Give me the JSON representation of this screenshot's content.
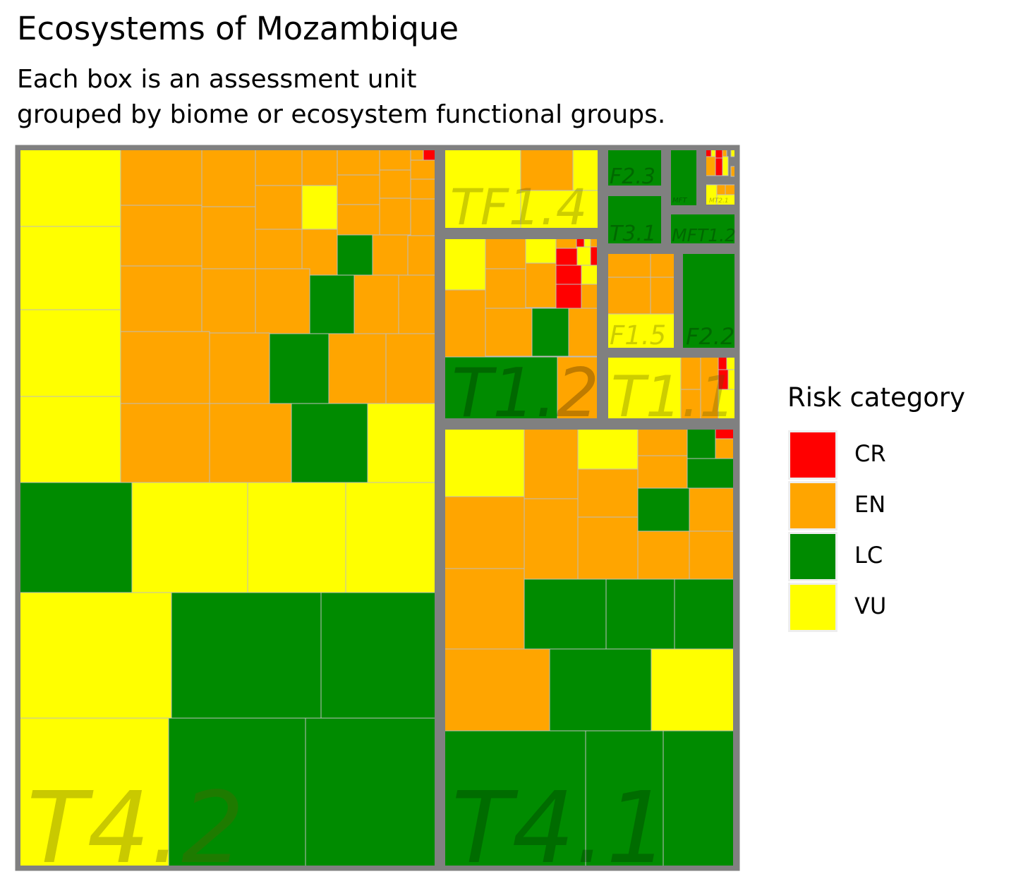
{
  "chart_data": {
    "type": "treemap",
    "title": "Ecosystems of Mozambique",
    "subtitle_lines": [
      "Each box is an assessment unit",
      "grouped by biome or ecosystem functional groups."
    ],
    "legend": {
      "title": "Risk category",
      "placement": "right",
      "items": [
        {
          "code": "CR",
          "color": "#ff0000"
        },
        {
          "code": "EN",
          "color": "#ffa500"
        },
        {
          "code": "LC",
          "color": "#008b00"
        },
        {
          "code": "VU",
          "color": "#ffff00"
        }
      ]
    },
    "groups": [
      {
        "label": "T4.2",
        "counts": {
          "CR": 1,
          "EN": 30,
          "LC": 8,
          "VU": 12
        }
      },
      {
        "label": "T4.1",
        "counts": {
          "CR": 1,
          "EN": 14,
          "LC": 11,
          "VU": 3
        }
      },
      {
        "label": "TF1.4",
        "counts": {
          "EN": 1,
          "VU": 2
        }
      },
      {
        "label": "T1.2",
        "counts": {
          "CR": 5,
          "EN": 11,
          "LC": 2,
          "VU": 4
        }
      },
      {
        "label": "T1.1",
        "counts": {
          "CR": 2,
          "EN": 1,
          "VU": 2
        }
      },
      {
        "label": "F2.3",
        "counts": {
          "LC": 1
        }
      },
      {
        "label": "T3.1",
        "counts": {
          "LC": 1
        }
      },
      {
        "label": "MFT1.2",
        "counts": {
          "LC": 1
        }
      },
      {
        "label": "MFT",
        "counts": {
          "LC": 1
        }
      },
      {
        "label": "MT2.1",
        "counts": {
          "CR": 4,
          "EN": 3,
          "LC": 1,
          "VU": 3
        }
      },
      {
        "label": "F1.5",
        "counts": {
          "EN": 4,
          "VU": 1
        }
      },
      {
        "label": "F2.2",
        "counts": {
          "LC": 1
        }
      }
    ]
  }
}
